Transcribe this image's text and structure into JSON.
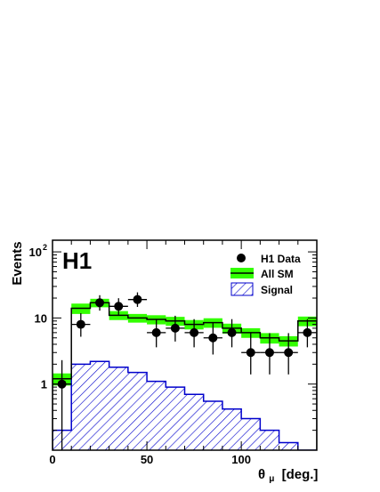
{
  "chart_data": {
    "type": "histogram",
    "experiment_label": "H1",
    "xlabel": "θ",
    "xlabel_subscript": "μ",
    "xlabel_unit": "[deg.]",
    "ylabel": "Events",
    "xlim": [
      0,
      140
    ],
    "ylim": [
      0.1,
      150
    ],
    "yscale": "log",
    "x_ticks": [
      0,
      50,
      100
    ],
    "y_tick_labels": [
      "1",
      "10",
      "10"
    ],
    "y_tick_superscript": "2",
    "legend_position": "top-right",
    "legend": [
      {
        "label": "H1 Data",
        "marker": "dot"
      },
      {
        "label": "All SM",
        "marker": "band"
      },
      {
        "label": "Signal",
        "marker": "hatch"
      }
    ],
    "colors": {
      "band": "#33ff00",
      "hist": "#000000",
      "signal": "#0000cc",
      "data": "#000000"
    },
    "bin_edges": [
      0,
      10,
      20,
      30,
      40,
      50,
      60,
      70,
      80,
      90,
      100,
      110,
      120,
      130,
      140
    ],
    "series": [
      {
        "name": "All SM",
        "values": [
          1.2,
          14,
          17,
          11,
          10,
          9.5,
          9,
          8,
          8.5,
          7,
          6,
          5,
          4.5,
          9
        ],
        "band_low": [
          0.95,
          11.5,
          14.5,
          9.3,
          8.5,
          8,
          7.6,
          6.7,
          7.1,
          5.8,
          5,
          4.1,
          3.7,
          7.5
        ],
        "band_high": [
          1.45,
          16.5,
          19.5,
          12.7,
          11.5,
          11,
          10.4,
          9.3,
          9.9,
          8.2,
          7,
          5.9,
          5.3,
          10.5
        ]
      },
      {
        "name": "Signal",
        "values": [
          0.2,
          2.0,
          2.2,
          1.8,
          1.5,
          1.1,
          0.9,
          0.7,
          0.55,
          0.42,
          0.3,
          0.2,
          0.13,
          0.1
        ]
      },
      {
        "name": "H1 Data",
        "x": [
          5,
          15,
          25,
          35,
          45,
          55,
          65,
          75,
          85,
          95,
          105,
          115,
          125,
          135
        ],
        "values": [
          1,
          8,
          17,
          15,
          19,
          6,
          7,
          6,
          5,
          6,
          3,
          3,
          3,
          6
        ],
        "err_low": [
          0.9,
          2.8,
          4.1,
          3.8,
          4.3,
          2.4,
          2.6,
          2.4,
          2.2,
          2.4,
          1.6,
          1.6,
          1.6,
          2.4
        ],
        "err_high": [
          1.3,
          3.8,
          5.1,
          4.9,
          5.4,
          3.6,
          3.8,
          3.6,
          3.4,
          3.6,
          2.9,
          2.9,
          2.9,
          3.6
        ]
      }
    ]
  }
}
